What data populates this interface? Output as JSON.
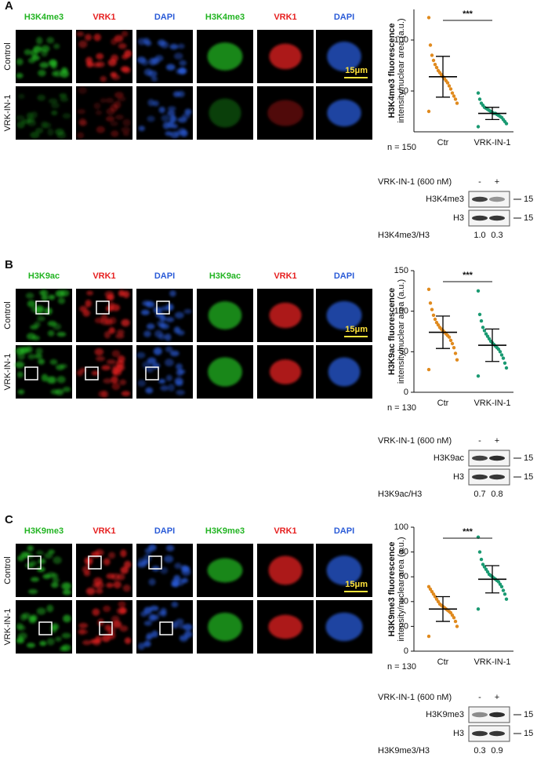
{
  "panels": [
    {
      "letter": "A",
      "channels": [
        {
          "label": "H3K4me3",
          "color": "#22b422"
        },
        {
          "label": "VRK1",
          "color": "#e62020"
        },
        {
          "label": "DAPI",
          "color": "#2a5bd7"
        },
        {
          "label": "H3K4me3",
          "color": "#22b422"
        },
        {
          "label": "VRK1",
          "color": "#e62020"
        },
        {
          "label": "DAPI",
          "color": "#2a5bd7"
        }
      ],
      "rows": [
        "Control",
        "VRK-IN-1"
      ],
      "scale_bar": "15μm",
      "n_label": "n = 150",
      "blot": {
        "treatment": "VRK-IN-1 (600 nM)",
        "lanes": [
          "-",
          "+"
        ],
        "bands": [
          {
            "label": "H3K4me3",
            "marker": "15"
          },
          {
            "label": "H3",
            "marker": "15"
          }
        ],
        "ratio_label": "H3K4me3/H3",
        "ratios": [
          "1.0",
          "0.3"
        ]
      }
    },
    {
      "letter": "B",
      "channels": [
        {
          "label": "H3K9ac",
          "color": "#22b422"
        },
        {
          "label": "VRK1",
          "color": "#e62020"
        },
        {
          "label": "DAPI",
          "color": "#2a5bd7"
        },
        {
          "label": "H3K9ac",
          "color": "#22b422"
        },
        {
          "label": "VRK1",
          "color": "#e62020"
        },
        {
          "label": "DAPI",
          "color": "#2a5bd7"
        }
      ],
      "rows": [
        "Control",
        "VRK-IN-1"
      ],
      "scale_bar": "15μm",
      "n_label": "n = 130",
      "blot": {
        "treatment": "VRK-IN-1 (600 nM)",
        "lanes": [
          "-",
          "+"
        ],
        "bands": [
          {
            "label": "H3K9ac",
            "marker": "15"
          },
          {
            "label": "H3",
            "marker": "15"
          }
        ],
        "ratio_label": "H3K9ac/H3",
        "ratios": [
          "0.7",
          "0.8"
        ]
      }
    },
    {
      "letter": "C",
      "channels": [
        {
          "label": "H3K9me3",
          "color": "#22b422"
        },
        {
          "label": "VRK1",
          "color": "#e62020"
        },
        {
          "label": "DAPI",
          "color": "#2a5bd7"
        },
        {
          "label": "H3K9me3",
          "color": "#22b422"
        },
        {
          "label": "VRK1",
          "color": "#e62020"
        },
        {
          "label": "DAPI",
          "color": "#2a5bd7"
        }
      ],
      "rows": [
        "Control",
        "VRK-IN-1"
      ],
      "scale_bar": "15μm",
      "n_label": "n = 130",
      "blot": {
        "treatment": "VRK-IN-1 (600 nM)",
        "lanes": [
          "-",
          "+"
        ],
        "bands": [
          {
            "label": "H3K9me3",
            "marker": "15"
          },
          {
            "label": "H3",
            "marker": "15"
          }
        ],
        "ratio_label": "H3K9me3/H3",
        "ratios": [
          "0.3",
          "0.9"
        ]
      }
    }
  ],
  "chart_data": [
    {
      "type": "strip",
      "y_label": [
        "H3K4me3 fluorescence",
        "intensity/nuclear area (a.u.)"
      ],
      "categories": [
        "Ctr",
        "VRK-IN-1"
      ],
      "significance": "***",
      "ylim": [
        10,
        130
      ],
      "yticks": [
        50,
        100
      ],
      "colors": [
        "#e08a1e",
        "#1a9a72"
      ],
      "means": [
        64,
        28
      ],
      "sd": [
        20,
        6
      ],
      "points": [
        [
          30,
          38,
          42,
          45,
          48,
          52,
          55,
          58,
          60,
          62,
          64,
          66,
          68,
          70,
          73,
          76,
          80,
          85,
          95,
          122
        ],
        [
          15,
          18,
          20,
          22,
          24,
          25,
          26,
          27,
          28,
          28,
          29,
          30,
          31,
          32,
          33,
          34,
          36,
          38,
          42,
          48
        ]
      ]
    },
    {
      "type": "strip",
      "y_label": [
        "H3K9ac fluorescence",
        "intensity/nuclear area (a.u.)"
      ],
      "categories": [
        "Ctr",
        "VRK-IN-1"
      ],
      "significance": "***",
      "ylim": [
        0,
        150
      ],
      "yticks": [
        0,
        50,
        100,
        150
      ],
      "colors": [
        "#e08a1e",
        "#1a9a72"
      ],
      "means": [
        74,
        58
      ],
      "sd": [
        20,
        20
      ],
      "points": [
        [
          28,
          40,
          48,
          55,
          60,
          64,
          68,
          70,
          72,
          74,
          76,
          78,
          80,
          83,
          86,
          90,
          95,
          102,
          110,
          127
        ],
        [
          20,
          30,
          36,
          42,
          46,
          50,
          53,
          55,
          57,
          59,
          61,
          63,
          66,
          69,
          72,
          76,
          80,
          88,
          96,
          125
        ]
      ]
    },
    {
      "type": "strip",
      "y_label": [
        "H3K9me3 fluorescence",
        "intensity/nuclear area (a.u.)"
      ],
      "categories": [
        "Ctr",
        "VRK-IN-1"
      ],
      "significance": "***",
      "ylim": [
        0,
        100
      ],
      "yticks": [
        0,
        20,
        40,
        60,
        80,
        100
      ],
      "colors": [
        "#e08a1e",
        "#1a9a72"
      ],
      "means": [
        34,
        58
      ],
      "sd": [
        10,
        11
      ],
      "points": [
        [
          12,
          20,
          24,
          27,
          29,
          31,
          32,
          33,
          34,
          35,
          36,
          37,
          38,
          40,
          42,
          44,
          46,
          48,
          50,
          52
        ],
        [
          34,
          42,
          46,
          49,
          52,
          54,
          56,
          57,
          58,
          59,
          60,
          61,
          62,
          64,
          66,
          68,
          70,
          74,
          80,
          92
        ]
      ]
    }
  ]
}
